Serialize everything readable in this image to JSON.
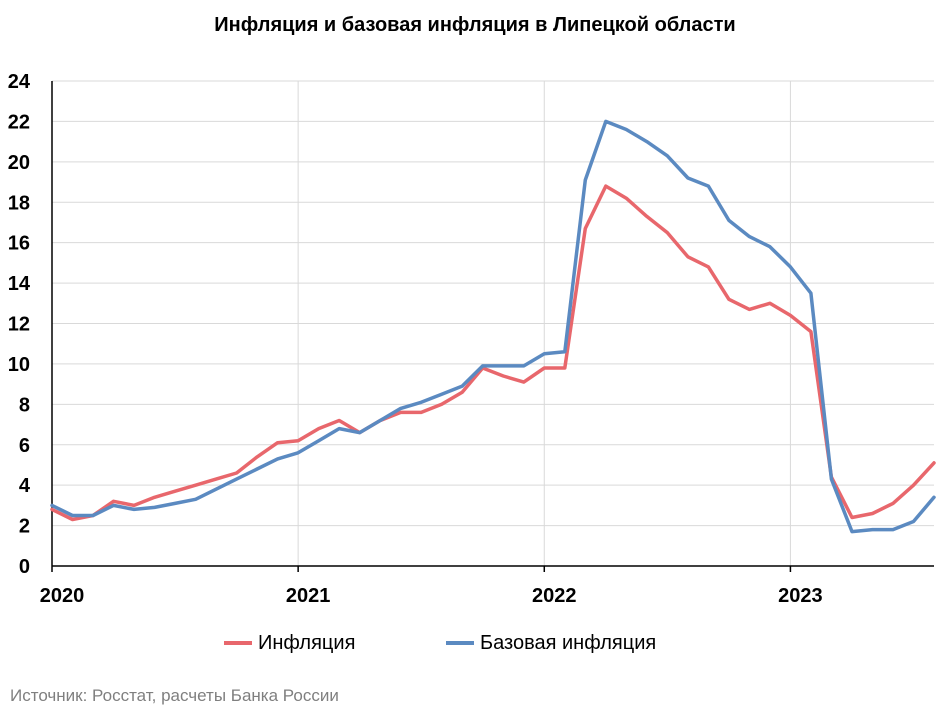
{
  "chart_data": {
    "type": "line",
    "title": "Инфляция и базовая инфляция в Липецкой области",
    "xlabel": "",
    "ylabel": "",
    "ylim": [
      0,
      24
    ],
    "yticks": [
      0,
      2,
      4,
      6,
      8,
      10,
      12,
      14,
      16,
      18,
      20,
      22,
      24
    ],
    "xticks": [
      "2020",
      "2021",
      "2022",
      "2023"
    ],
    "x_range": [
      "2020-01",
      "2023-08"
    ],
    "grid": true,
    "legend_position": "bottom",
    "x": [
      "2020-01",
      "2020-02",
      "2020-03",
      "2020-04",
      "2020-05",
      "2020-06",
      "2020-07",
      "2020-08",
      "2020-09",
      "2020-10",
      "2020-11",
      "2020-12",
      "2021-01",
      "2021-02",
      "2021-03",
      "2021-04",
      "2021-05",
      "2021-06",
      "2021-07",
      "2021-08",
      "2021-09",
      "2021-10",
      "2021-11",
      "2021-12",
      "2022-01",
      "2022-02",
      "2022-03",
      "2022-04",
      "2022-05",
      "2022-06",
      "2022-07",
      "2022-08",
      "2022-09",
      "2022-10",
      "2022-11",
      "2022-12",
      "2023-01",
      "2023-02",
      "2023-03",
      "2023-04",
      "2023-05",
      "2023-06",
      "2023-07",
      "2023-08"
    ],
    "series": [
      {
        "name": "Инфляция",
        "color": "#e8676c",
        "values": [
          2.8,
          2.3,
          2.5,
          3.2,
          3.0,
          3.4,
          3.7,
          4.0,
          4.3,
          4.6,
          5.4,
          6.1,
          6.2,
          6.8,
          7.2,
          6.6,
          7.2,
          7.6,
          7.6,
          8.0,
          8.6,
          9.8,
          9.4,
          9.1,
          9.8,
          9.8,
          16.7,
          18.8,
          18.2,
          17.3,
          16.5,
          15.3,
          14.8,
          13.2,
          12.7,
          13.0,
          12.4,
          11.6,
          4.4,
          2.4,
          2.6,
          3.1,
          4.0,
          5.1
        ]
      },
      {
        "name": "Базовая инфляция",
        "color": "#5b8ac1",
        "values": [
          3.0,
          2.5,
          2.5,
          3.0,
          2.8,
          2.9,
          3.1,
          3.3,
          3.8,
          4.3,
          4.8,
          5.3,
          5.6,
          6.2,
          6.8,
          6.6,
          7.2,
          7.8,
          8.1,
          8.5,
          8.9,
          9.9,
          9.9,
          9.9,
          10.5,
          10.6,
          19.1,
          22.0,
          21.6,
          21.0,
          20.3,
          19.2,
          18.8,
          17.1,
          16.3,
          15.8,
          14.8,
          13.5,
          4.3,
          1.7,
          1.8,
          1.8,
          2.2,
          3.4
        ]
      }
    ]
  },
  "footer": {
    "source": "Источник: Росстат, расчеты Банка России"
  }
}
